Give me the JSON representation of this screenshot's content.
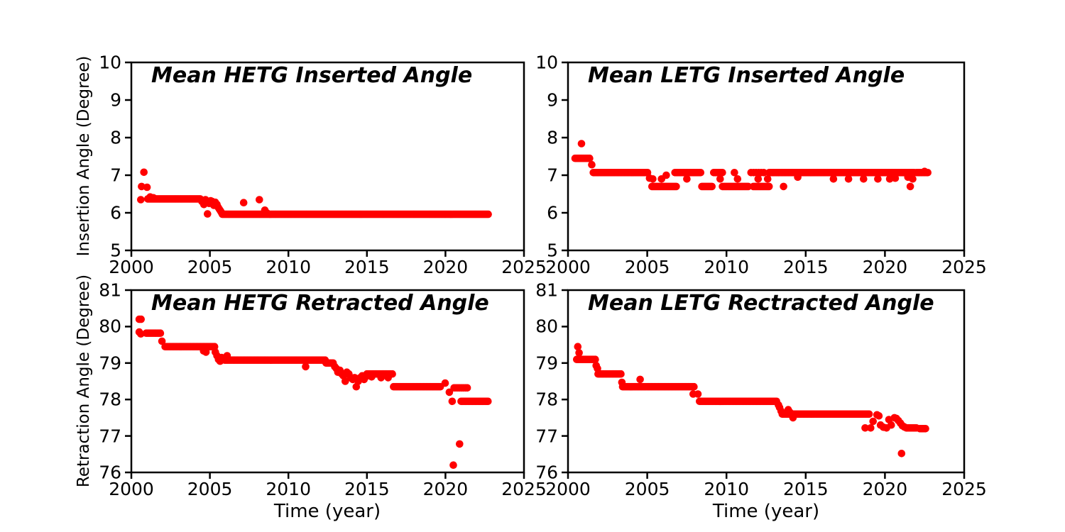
{
  "figure": {
    "background": "#ffffff",
    "axis_color": "#000000"
  },
  "chart_data": [
    {
      "type": "scatter",
      "title": "Mean HETG Inserted Angle",
      "ylabel": "Insertion Angle (Degree)",
      "xlabel": "",
      "xlim": [
        2000,
        2025
      ],
      "ylim": [
        5,
        10
      ],
      "xticks": [
        2000,
        2005,
        2010,
        2015,
        2020,
        2025
      ],
      "yticks": [
        5,
        6,
        7,
        8,
        9,
        10
      ],
      "marker_color": "#ff0000",
      "runs": [
        {
          "x0": 2001.05,
          "x1": 2004.4,
          "y": 6.37
        },
        {
          "x0": 2005.8,
          "x1": 2022.75,
          "y": 5.96
        }
      ],
      "points": [
        [
          2000.6,
          6.35
        ],
        [
          2000.65,
          6.7
        ],
        [
          2000.8,
          7.08
        ],
        [
          2001.0,
          6.68
        ],
        [
          2001.2,
          6.42
        ],
        [
          2001.4,
          6.4
        ],
        [
          2004.5,
          6.3
        ],
        [
          2004.62,
          6.22
        ],
        [
          2004.72,
          6.35
        ],
        [
          2004.85,
          5.97
        ],
        [
          2004.95,
          6.25
        ],
        [
          2005.05,
          6.32
        ],
        [
          2005.15,
          6.3
        ],
        [
          2005.25,
          6.2
        ],
        [
          2005.35,
          6.28
        ],
        [
          2005.45,
          6.22
        ],
        [
          2005.52,
          6.15
        ],
        [
          2005.6,
          6.1
        ],
        [
          2005.68,
          6.05
        ],
        [
          2005.75,
          6.0
        ],
        [
          2007.15,
          6.27
        ],
        [
          2008.15,
          6.35
        ],
        [
          2008.5,
          6.07
        ],
        [
          2008.62,
          6.0
        ]
      ]
    },
    {
      "type": "scatter",
      "title": "Mean LETG Inserted Angle",
      "ylabel": "",
      "xlabel": "",
      "xlim": [
        2000,
        2025
      ],
      "ylim": [
        5,
        10
      ],
      "xticks": [
        2000,
        2005,
        2010,
        2015,
        2020,
        2025
      ],
      "yticks": [
        5,
        6,
        7,
        8,
        9,
        10
      ],
      "marker_color": "#ff0000",
      "runs": [
        {
          "x0": 2000.45,
          "x1": 2001.4,
          "y": 7.45,
          "step": 0.07
        },
        {
          "x0": 2001.6,
          "x1": 2005.1,
          "y": 7.07
        },
        {
          "x0": 2005.3,
          "x1": 2006.9,
          "y": 6.7
        },
        {
          "x0": 2006.75,
          "x1": 2008.4,
          "y": 7.07
        },
        {
          "x0": 2008.45,
          "x1": 2009.15,
          "y": 6.7
        },
        {
          "x0": 2009.2,
          "x1": 2009.75,
          "y": 7.07
        },
        {
          "x0": 2009.75,
          "x1": 2011.4,
          "y": 6.7
        },
        {
          "x0": 2011.55,
          "x1": 2012.35,
          "y": 7.07,
          "step": 0.16
        },
        {
          "x0": 2011.7,
          "x1": 2012.7,
          "y": 6.7
        },
        {
          "x0": 2012.7,
          "x1": 2013.25,
          "y": 7.07
        },
        {
          "x0": 2013.3,
          "x1": 2021.9,
          "y": 7.07
        },
        {
          "x0": 2022.0,
          "x1": 2022.7,
          "y": 7.07,
          "step": 0.1
        }
      ],
      "points": [
        [
          2000.85,
          7.84
        ],
        [
          2001.5,
          7.28
        ],
        [
          2005.15,
          6.92
        ],
        [
          2005.35,
          6.9
        ],
        [
          2005.9,
          6.9
        ],
        [
          2006.2,
          7.0
        ],
        [
          2007.5,
          6.9
        ],
        [
          2009.6,
          6.9
        ],
        [
          2010.5,
          7.07
        ],
        [
          2010.7,
          6.9
        ],
        [
          2012.0,
          6.9
        ],
        [
          2012.6,
          6.9
        ],
        [
          2013.6,
          6.7
        ],
        [
          2014.5,
          6.95
        ],
        [
          2016.75,
          6.9
        ],
        [
          2017.7,
          6.9
        ],
        [
          2018.65,
          6.9
        ],
        [
          2019.55,
          6.9
        ],
        [
          2020.3,
          6.9
        ],
        [
          2020.65,
          6.92
        ],
        [
          2021.45,
          6.95
        ],
        [
          2021.6,
          6.7
        ],
        [
          2021.75,
          6.9
        ],
        [
          2022.5,
          7.1
        ]
      ]
    },
    {
      "type": "scatter",
      "title": "Mean HETG Retracted Angle",
      "ylabel": "Retraction Angle (Degree)",
      "xlabel": "Time (year)",
      "xlim": [
        2000,
        2025
      ],
      "ylim": [
        76,
        81
      ],
      "xticks": [
        2000,
        2005,
        2010,
        2015,
        2020,
        2025
      ],
      "yticks": [
        76,
        77,
        78,
        79,
        80,
        81
      ],
      "marker_color": "#ff0000",
      "runs": [
        {
          "x0": 2000.95,
          "x1": 2001.9,
          "y": 79.82
        },
        {
          "x0": 2002.15,
          "x1": 2005.3,
          "y": 79.45
        },
        {
          "x0": 2005.95,
          "x1": 2012.4,
          "y": 79.08
        },
        {
          "x0": 2012.4,
          "x1": 2012.85,
          "y": 79.0
        },
        {
          "x0": 2015.0,
          "x1": 2016.7,
          "y": 78.7
        },
        {
          "x0": 2016.7,
          "x1": 2019.75,
          "y": 78.35
        },
        {
          "x0": 2020.55,
          "x1": 2021.4,
          "y": 78.32,
          "step": 0.12
        },
        {
          "x0": 2021.0,
          "x1": 2022.78,
          "y": 77.95
        }
      ],
      "points": [
        [
          2000.5,
          80.2
        ],
        [
          2000.62,
          80.2
        ],
        [
          2000.5,
          79.85
        ],
        [
          2000.6,
          79.8
        ],
        [
          2001.95,
          79.6
        ],
        [
          2004.6,
          79.33
        ],
        [
          2004.75,
          79.3
        ],
        [
          2005.35,
          79.3
        ],
        [
          2005.45,
          79.2
        ],
        [
          2005.55,
          79.1
        ],
        [
          2005.65,
          79.05
        ],
        [
          2005.75,
          79.15
        ],
        [
          2005.85,
          79.1
        ],
        [
          2006.1,
          79.2
        ],
        [
          2011.1,
          78.9
        ],
        [
          2012.95,
          78.9
        ],
        [
          2013.05,
          78.85
        ],
        [
          2013.15,
          78.75
        ],
        [
          2013.28,
          78.8
        ],
        [
          2013.4,
          78.7
        ],
        [
          2013.5,
          78.65
        ],
        [
          2013.62,
          78.5
        ],
        [
          2013.72,
          78.75
        ],
        [
          2013.85,
          78.7
        ],
        [
          2013.95,
          78.6
        ],
        [
          2014.1,
          78.55
        ],
        [
          2014.22,
          78.6
        ],
        [
          2014.32,
          78.35
        ],
        [
          2014.45,
          78.5
        ],
        [
          2014.58,
          78.6
        ],
        [
          2014.7,
          78.65
        ],
        [
          2014.82,
          78.55
        ],
        [
          2014.92,
          78.62
        ],
        [
          2015.3,
          78.62
        ],
        [
          2015.9,
          78.6
        ],
        [
          2016.35,
          78.6
        ],
        [
          2019.98,
          78.45
        ],
        [
          2020.25,
          78.2
        ],
        [
          2020.43,
          77.95
        ],
        [
          2020.5,
          76.2
        ],
        [
          2020.9,
          76.78
        ]
      ]
    },
    {
      "type": "scatter",
      "title": "Mean LETG Rectracted Angle",
      "ylabel": "",
      "xlabel": "Time (year)",
      "xlim": [
        2000,
        2025
      ],
      "ylim": [
        76,
        81
      ],
      "xticks": [
        2000,
        2005,
        2010,
        2015,
        2020,
        2025
      ],
      "yticks": [
        76,
        77,
        78,
        79,
        80,
        81
      ],
      "marker_color": "#ff0000",
      "runs": [
        {
          "x0": 2000.55,
          "x1": 2001.72,
          "y": 79.1
        },
        {
          "x0": 2001.9,
          "x1": 2003.35,
          "y": 78.7
        },
        {
          "x0": 2003.45,
          "x1": 2008.0,
          "y": 78.35
        },
        {
          "x0": 2008.3,
          "x1": 2013.2,
          "y": 77.95
        },
        {
          "x0": 2013.6,
          "x1": 2019.05,
          "y": 77.6
        },
        {
          "x0": 2021.35,
          "x1": 2022.05,
          "y": 77.22
        },
        {
          "x0": 2022.2,
          "x1": 2022.6,
          "y": 77.2
        }
      ],
      "points": [
        [
          2000.62,
          79.45
        ],
        [
          2000.7,
          79.28
        ],
        [
          2001.78,
          78.93
        ],
        [
          2001.86,
          78.85
        ],
        [
          2003.4,
          78.47
        ],
        [
          2004.55,
          78.55
        ],
        [
          2007.9,
          78.15
        ],
        [
          2008.2,
          78.15
        ],
        [
          2013.28,
          77.85
        ],
        [
          2013.35,
          77.78
        ],
        [
          2013.45,
          77.68
        ],
        [
          2013.52,
          77.6
        ],
        [
          2013.9,
          77.72
        ],
        [
          2014.0,
          77.65
        ],
        [
          2014.2,
          77.5
        ],
        [
          2018.75,
          77.22
        ],
        [
          2019.1,
          77.22
        ],
        [
          2019.25,
          77.4
        ],
        [
          2019.5,
          77.58
        ],
        [
          2019.62,
          77.55
        ],
        [
          2019.72,
          77.3
        ],
        [
          2019.9,
          77.24
        ],
        [
          2020.1,
          77.22
        ],
        [
          2020.25,
          77.45
        ],
        [
          2020.4,
          77.3
        ],
        [
          2020.6,
          77.5
        ],
        [
          2020.72,
          77.48
        ],
        [
          2020.85,
          77.42
        ],
        [
          2020.98,
          77.35
        ],
        [
          2021.1,
          77.28
        ],
        [
          2021.22,
          77.25
        ],
        [
          2021.05,
          76.52
        ]
      ]
    }
  ]
}
